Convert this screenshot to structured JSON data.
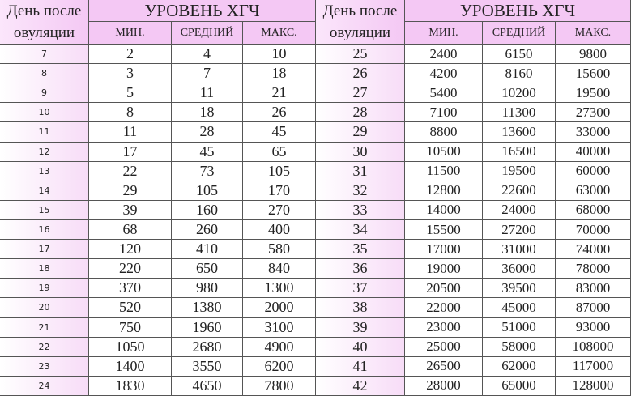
{
  "header": {
    "day_label_line1": "День после",
    "day_label_line2": "овуляции",
    "title": "УРОВЕНЬ ХГЧ",
    "col_min": "МИН.",
    "col_avg": "СРЕДНИЙ",
    "col_max": "МАКС."
  },
  "colors": {
    "header_bg": "#f4c8f4",
    "day_column_tint": "#f7dcf7",
    "grid": "#555555"
  },
  "tables": [
    {
      "rows": [
        [
          "7",
          "2",
          "4",
          "10"
        ],
        [
          "8",
          "3",
          "7",
          "18"
        ],
        [
          "9",
          "5",
          "11",
          "21"
        ],
        [
          "10",
          "8",
          "18",
          "26"
        ],
        [
          "11",
          "11",
          "28",
          "45"
        ],
        [
          "12",
          "17",
          "45",
          "65"
        ],
        [
          "13",
          "22",
          "73",
          "105"
        ],
        [
          "14",
          "29",
          "105",
          "170"
        ],
        [
          "15",
          "39",
          "160",
          "270"
        ],
        [
          "16",
          "68",
          "260",
          "400"
        ],
        [
          "17",
          "120",
          "410",
          "580"
        ],
        [
          "18",
          "220",
          "650",
          "840"
        ],
        [
          "19",
          "370",
          "980",
          "1300"
        ],
        [
          "20",
          "520",
          "1380",
          "2000"
        ],
        [
          "21",
          "750",
          "1960",
          "3100"
        ],
        [
          "22",
          "1050",
          "2680",
          "4900"
        ],
        [
          "23",
          "1400",
          "3550",
          "6200"
        ],
        [
          "24",
          "1830",
          "4650",
          "7800"
        ]
      ]
    },
    {
      "rows": [
        [
          "25",
          "2400",
          "6150",
          "9800"
        ],
        [
          "26",
          "4200",
          "8160",
          "15600"
        ],
        [
          "27",
          "5400",
          "10200",
          "19500"
        ],
        [
          "28",
          "7100",
          "11300",
          "27300"
        ],
        [
          "29",
          "8800",
          "13600",
          "33000"
        ],
        [
          "30",
          "10500",
          "16500",
          "40000"
        ],
        [
          "31",
          "11500",
          "19500",
          "60000"
        ],
        [
          "32",
          "12800",
          "22600",
          "63000"
        ],
        [
          "33",
          "14000",
          "24000",
          "68000"
        ],
        [
          "34",
          "15500",
          "27200",
          "70000"
        ],
        [
          "35",
          "17000",
          "31000",
          "74000"
        ],
        [
          "36",
          "19000",
          "36000",
          "78000"
        ],
        [
          "37",
          "20500",
          "39500",
          "83000"
        ],
        [
          "38",
          "22000",
          "45000",
          "87000"
        ],
        [
          "39",
          "23000",
          "51000",
          "93000"
        ],
        [
          "40",
          "25000",
          "58000",
          "108000"
        ],
        [
          "41",
          "26500",
          "62000",
          "117000"
        ],
        [
          "42",
          "28000",
          "65000",
          "128000"
        ]
      ]
    }
  ]
}
